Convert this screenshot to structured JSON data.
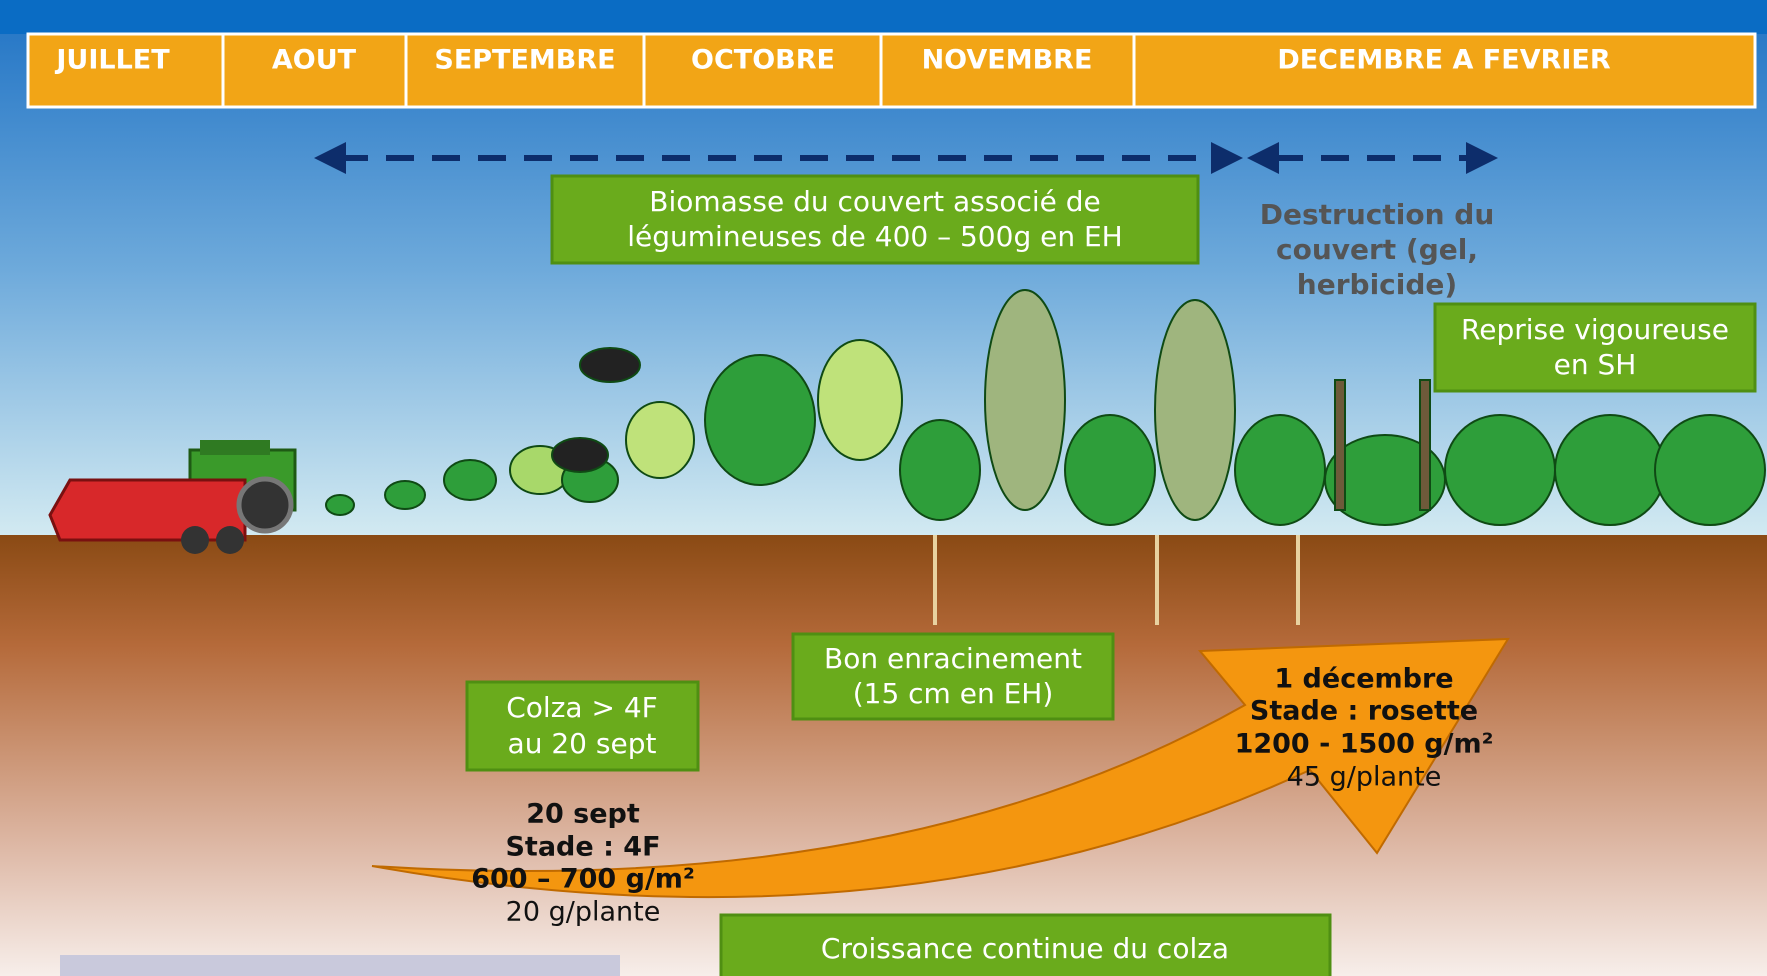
{
  "months": [
    "JUILLET",
    "AOUT",
    "SEPTEMBRE",
    "OCTOBRE",
    "NOVEMBRE",
    "DECEMBRE A FEVRIER"
  ],
  "biomasse": [
    "Biomasse du couvert associé de",
    "légumineuses de 400 – 500g en EH"
  ],
  "destruction": [
    "Destruction du",
    "couvert (gel,",
    "herbicide)"
  ],
  "reprise": [
    "Reprise vigoureuse",
    "en SH"
  ],
  "enracinement": [
    "Bon enracinement",
    "(15 cm en EH)"
  ],
  "colza": [
    "Colza > 4F",
    "au 20 sept"
  ],
  "sept": [
    "20 sept",
    "Stade : 4F",
    "600 – 700 g/m²",
    "20 g/plante"
  ],
  "decembre": [
    "1 décembre",
    "Stade : rosette",
    "1200 - 1500 g/m²",
    "45 g/plante"
  ],
  "croissance": "Croissance continue du colza"
}
